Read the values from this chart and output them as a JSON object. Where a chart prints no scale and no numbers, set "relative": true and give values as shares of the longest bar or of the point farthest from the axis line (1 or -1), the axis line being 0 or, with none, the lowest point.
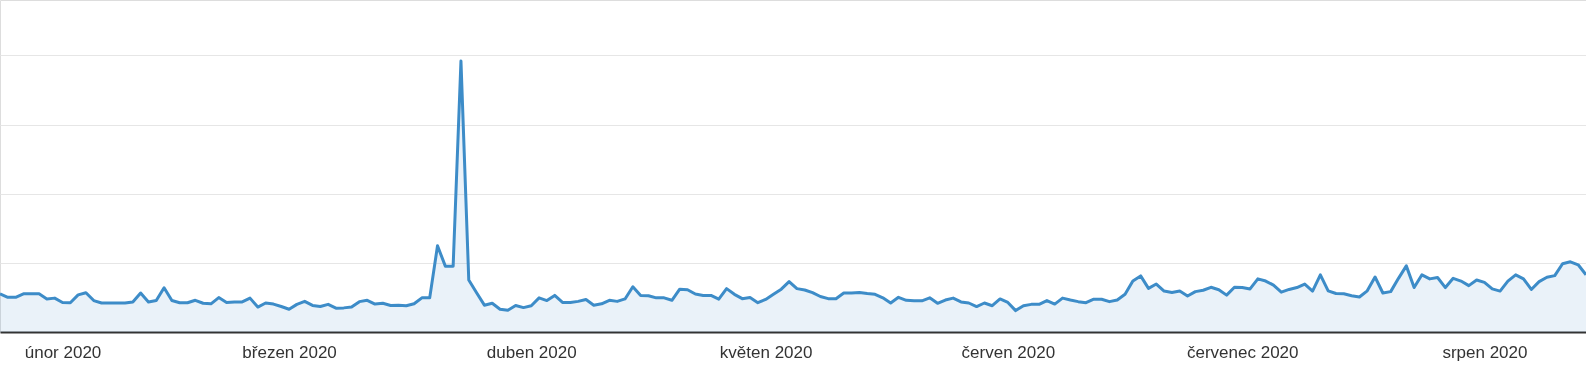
{
  "chart_data": {
    "type": "area",
    "relative": true,
    "grid": "y",
    "xlim": [
      "2020-01-24",
      "2020-08-14"
    ],
    "xticks": [
      {
        "value": "2020-02-01",
        "label": "únor 2020"
      },
      {
        "value": "2020-03-01",
        "label": "březen 2020"
      },
      {
        "value": "2020-04-01",
        "label": "duben 2020"
      },
      {
        "value": "2020-05-01",
        "label": "květen 2020"
      },
      {
        "value": "2020-06-01",
        "label": "červen 2020"
      },
      {
        "value": "2020-07-01",
        "label": "červenec 2020"
      },
      {
        "value": "2020-08-01",
        "label": "srpen 2020"
      }
    ],
    "x": [
      "2020-01-24",
      "2020-01-25",
      "2020-01-26",
      "2020-01-27",
      "2020-01-28",
      "2020-01-29",
      "2020-01-30",
      "2020-01-31",
      "2020-02-01",
      "2020-02-02",
      "2020-02-03",
      "2020-02-04",
      "2020-02-05",
      "2020-02-06",
      "2020-02-07",
      "2020-02-08",
      "2020-02-09",
      "2020-02-10",
      "2020-02-11",
      "2020-02-12",
      "2020-02-13",
      "2020-02-14",
      "2020-02-15",
      "2020-02-16",
      "2020-02-17",
      "2020-02-18",
      "2020-02-19",
      "2020-02-20",
      "2020-02-21",
      "2020-02-22",
      "2020-02-23",
      "2020-02-24",
      "2020-02-25",
      "2020-02-26",
      "2020-02-27",
      "2020-02-28",
      "2020-02-29",
      "2020-03-01",
      "2020-03-02",
      "2020-03-03",
      "2020-03-04",
      "2020-03-05",
      "2020-03-06",
      "2020-03-07",
      "2020-03-08",
      "2020-03-09",
      "2020-03-10",
      "2020-03-11",
      "2020-03-12",
      "2020-03-13",
      "2020-03-14",
      "2020-03-15",
      "2020-03-16",
      "2020-03-17",
      "2020-03-18",
      "2020-03-19",
      "2020-03-20",
      "2020-03-21",
      "2020-03-22",
      "2020-03-23",
      "2020-03-24",
      "2020-03-25",
      "2020-03-26",
      "2020-03-27",
      "2020-03-28",
      "2020-03-29",
      "2020-03-30",
      "2020-03-31",
      "2020-04-01",
      "2020-04-02",
      "2020-04-03",
      "2020-04-04",
      "2020-04-05",
      "2020-04-06",
      "2020-04-07",
      "2020-04-08",
      "2020-04-09",
      "2020-04-10",
      "2020-04-11",
      "2020-04-12",
      "2020-04-13",
      "2020-04-14",
      "2020-04-15",
      "2020-04-16",
      "2020-04-17",
      "2020-04-18",
      "2020-04-19",
      "2020-04-20",
      "2020-04-21",
      "2020-04-22",
      "2020-04-23",
      "2020-04-24",
      "2020-04-25",
      "2020-04-26",
      "2020-04-27",
      "2020-04-28",
      "2020-04-29",
      "2020-04-30",
      "2020-05-01",
      "2020-05-02",
      "2020-05-03",
      "2020-05-04",
      "2020-05-05",
      "2020-05-06",
      "2020-05-07",
      "2020-05-08",
      "2020-05-09",
      "2020-05-10",
      "2020-05-11",
      "2020-05-12",
      "2020-05-13",
      "2020-05-14",
      "2020-05-15",
      "2020-05-16",
      "2020-05-17",
      "2020-05-18",
      "2020-05-19",
      "2020-05-20",
      "2020-05-21",
      "2020-05-22",
      "2020-05-23",
      "2020-05-24",
      "2020-05-25",
      "2020-05-26",
      "2020-05-27",
      "2020-05-28",
      "2020-05-29",
      "2020-05-30",
      "2020-05-31",
      "2020-06-01",
      "2020-06-02",
      "2020-06-03",
      "2020-06-04",
      "2020-06-05",
      "2020-06-06",
      "2020-06-07",
      "2020-06-08",
      "2020-06-09",
      "2020-06-10",
      "2020-06-11",
      "2020-06-12",
      "2020-06-13",
      "2020-06-14",
      "2020-06-15",
      "2020-06-16",
      "2020-06-17",
      "2020-06-18",
      "2020-06-19",
      "2020-06-20",
      "2020-06-21",
      "2020-06-22",
      "2020-06-23",
      "2020-06-24",
      "2020-06-25",
      "2020-06-26",
      "2020-06-27",
      "2020-06-28",
      "2020-06-29",
      "2020-06-30",
      "2020-07-01",
      "2020-07-02",
      "2020-07-03",
      "2020-07-04",
      "2020-07-05",
      "2020-07-06",
      "2020-07-07",
      "2020-07-08",
      "2020-07-09",
      "2020-07-10",
      "2020-07-11",
      "2020-07-12",
      "2020-07-13",
      "2020-07-14",
      "2020-07-15",
      "2020-07-16",
      "2020-07-17",
      "2020-07-18",
      "2020-07-19",
      "2020-07-20",
      "2020-07-21",
      "2020-07-22",
      "2020-07-23",
      "2020-07-24",
      "2020-07-25",
      "2020-07-26",
      "2020-07-27",
      "2020-07-28",
      "2020-07-29",
      "2020-07-30",
      "2020-07-31",
      "2020-08-01",
      "2020-08-02",
      "2020-08-03",
      "2020-08-04",
      "2020-08-05",
      "2020-08-06",
      "2020-08-07",
      "2020-08-08",
      "2020-08-09",
      "2020-08-10",
      "2020-08-11",
      "2020-08-12",
      "2020-08-13",
      "2020-08-14"
    ],
    "series": [
      {
        "color": "#3d8cc8",
        "values": [
          0.141,
          0.128,
          0.128,
          0.141,
          0.141,
          0.141,
          0.122,
          0.125,
          0.109,
          0.108,
          0.137,
          0.145,
          0.116,
          0.107,
          0.107,
          0.107,
          0.107,
          0.111,
          0.144,
          0.111,
          0.116,
          0.163,
          0.116,
          0.108,
          0.108,
          0.117,
          0.106,
          0.104,
          0.127,
          0.109,
          0.111,
          0.111,
          0.125,
          0.092,
          0.107,
          0.103,
          0.094,
          0.084,
          0.102,
          0.113,
          0.098,
          0.094,
          0.102,
          0.088,
          0.089,
          0.092,
          0.112,
          0.117,
          0.103,
          0.106,
          0.098,
          0.099,
          0.097,
          0.104,
          0.126,
          0.126,
          0.318,
          0.243,
          0.243,
          1.0,
          0.192,
          0.145,
          0.099,
          0.106,
          0.084,
          0.08,
          0.098,
          0.09,
          0.097,
          0.126,
          0.116,
          0.135,
          0.109,
          0.109,
          0.113,
          0.12,
          0.099,
          0.104,
          0.117,
          0.113,
          0.122,
          0.167,
          0.135,
          0.134,
          0.126,
          0.126,
          0.117,
          0.158,
          0.156,
          0.14,
          0.135,
          0.135,
          0.121,
          0.16,
          0.139,
          0.123,
          0.127,
          0.108,
          0.12,
          0.139,
          0.158,
          0.186,
          0.16,
          0.155,
          0.145,
          0.131,
          0.123,
          0.123,
          0.144,
          0.144,
          0.146,
          0.142,
          0.139,
          0.126,
          0.107,
          0.128,
          0.117,
          0.115,
          0.115,
          0.126,
          0.106,
          0.118,
          0.125,
          0.111,
          0.107,
          0.094,
          0.107,
          0.097,
          0.122,
          0.109,
          0.079,
          0.097,
          0.102,
          0.102,
          0.116,
          0.103,
          0.125,
          0.118,
          0.112,
          0.108,
          0.121,
          0.121,
          0.112,
          0.118,
          0.139,
          0.188,
          0.207,
          0.161,
          0.177,
          0.151,
          0.146,
          0.151,
          0.133,
          0.149,
          0.154,
          0.165,
          0.156,
          0.136,
          0.165,
          0.164,
          0.159,
          0.196,
          0.188,
          0.173,
          0.147,
          0.157,
          0.164,
          0.177,
          0.151,
          0.211,
          0.152,
          0.142,
          0.141,
          0.134,
          0.129,
          0.152,
          0.203,
          0.144,
          0.149,
          0.198,
          0.244,
          0.164,
          0.211,
          0.196,
          0.201,
          0.164,
          0.198,
          0.188,
          0.171,
          0.192,
          0.183,
          0.159,
          0.151,
          0.188,
          0.211,
          0.196,
          0.157,
          0.186,
          0.202,
          0.208,
          0.252,
          0.259,
          0.248,
          0.211
        ]
      }
    ]
  }
}
